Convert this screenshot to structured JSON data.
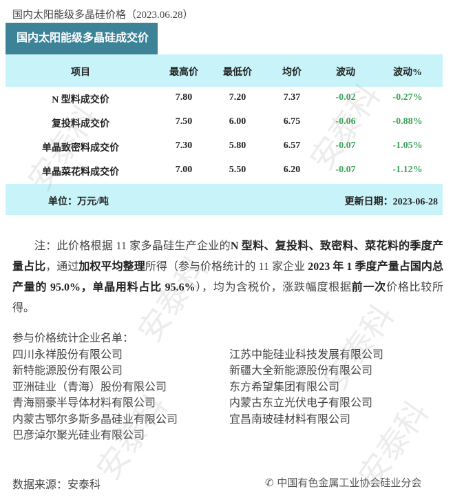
{
  "title": "国内太阳能级多晶硅价格（2023.06.28）",
  "table": {
    "tab_label": "国内太阳能级多晶硅成交价",
    "headers": [
      "项目",
      "最高价",
      "最低价",
      "均价",
      "波动",
      "波动%"
    ],
    "rows": [
      [
        "N 型料成交价",
        "7.80",
        "7.20",
        "7.37",
        "-0.02",
        "-0.27%"
      ],
      [
        "复投料成交价",
        "7.50",
        "6.00",
        "6.75",
        "-0.06",
        "-0.88%"
      ],
      [
        "单晶致密料成交价",
        "7.30",
        "5.80",
        "6.57",
        "-0.07",
        "-1.05%"
      ],
      [
        "单晶菜花料成交价",
        "7.00",
        "5.50",
        "6.20",
        "-0.07",
        "-1.12%"
      ]
    ],
    "unit": "单位：万元/吨",
    "update": "更新日期：2023-06-28",
    "change_color": "#3aa357",
    "header_color": "#c8f4f9",
    "tab_color": "#3d8398"
  },
  "note": {
    "p1": "注：此价格根据 11 家多晶硅生产企业的",
    "b1": "N 型料、复投料、致密料、菜花料的季度产量占比",
    "p2": "，通过",
    "b2": "加权平均整理",
    "p3": "所得（参与价格统计的 11 家企业",
    "b3": " 2023 年 1 季度产量占国内总产量的 95.0%，单晶用料占比 95.6%",
    "p4": "），均为含税价，涨跌幅度根据",
    "b4": "前一次",
    "p5": "价格比较所得。"
  },
  "companies_label": "参与价格统计企业名单：",
  "companies_left": [
    "四川永祥股份有限公司",
    "新特能源股份有限公司",
    "亚洲硅业（青海）股份有限公司",
    "青海丽豪半导体材料有限公司",
    "内蒙古鄂尔多斯多晶硅业有限公司",
    "巴彦淖尔聚光硅业有限公司"
  ],
  "companies_right": [
    "江苏中能硅业科技发展有限公司",
    "新疆大全新能源股份有限公司",
    "东方希望集团有限公司",
    "内蒙古东立光伏电子有限公司",
    "宜昌南玻硅材料有限公司"
  ],
  "source": "数据来源：安泰科",
  "brand": "中国有色金属工业协会硅业分会",
  "watermark": "安泰科"
}
